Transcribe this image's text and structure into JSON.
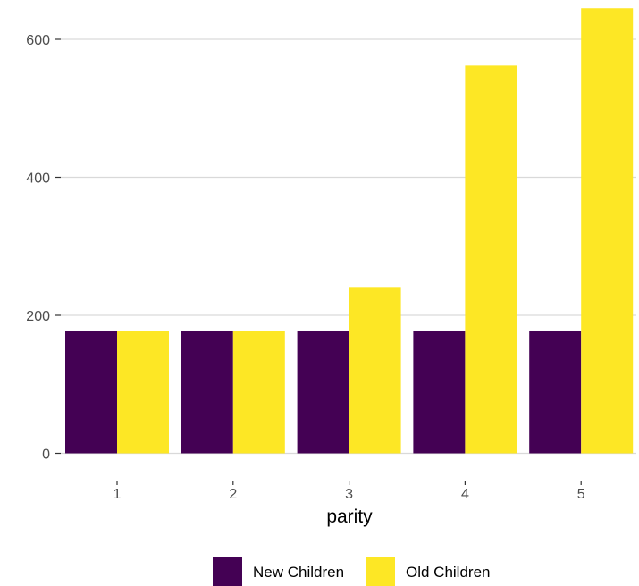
{
  "chart_data": {
    "type": "bar",
    "xlabel": "parity",
    "ylabel": "",
    "categories": [
      "1",
      "2",
      "3",
      "4",
      "5"
    ],
    "series": [
      {
        "name": "New Children",
        "color": "#440154",
        "values": [
          178,
          178,
          178,
          178,
          178
        ]
      },
      {
        "name": "Old Children",
        "color": "#fde725",
        "values": [
          178,
          178,
          241,
          562,
          645
        ]
      }
    ],
    "ylim": [
      0,
      650
    ],
    "yticks": [
      0,
      200,
      400,
      600
    ],
    "grid": true,
    "legend_position": "bottom"
  }
}
